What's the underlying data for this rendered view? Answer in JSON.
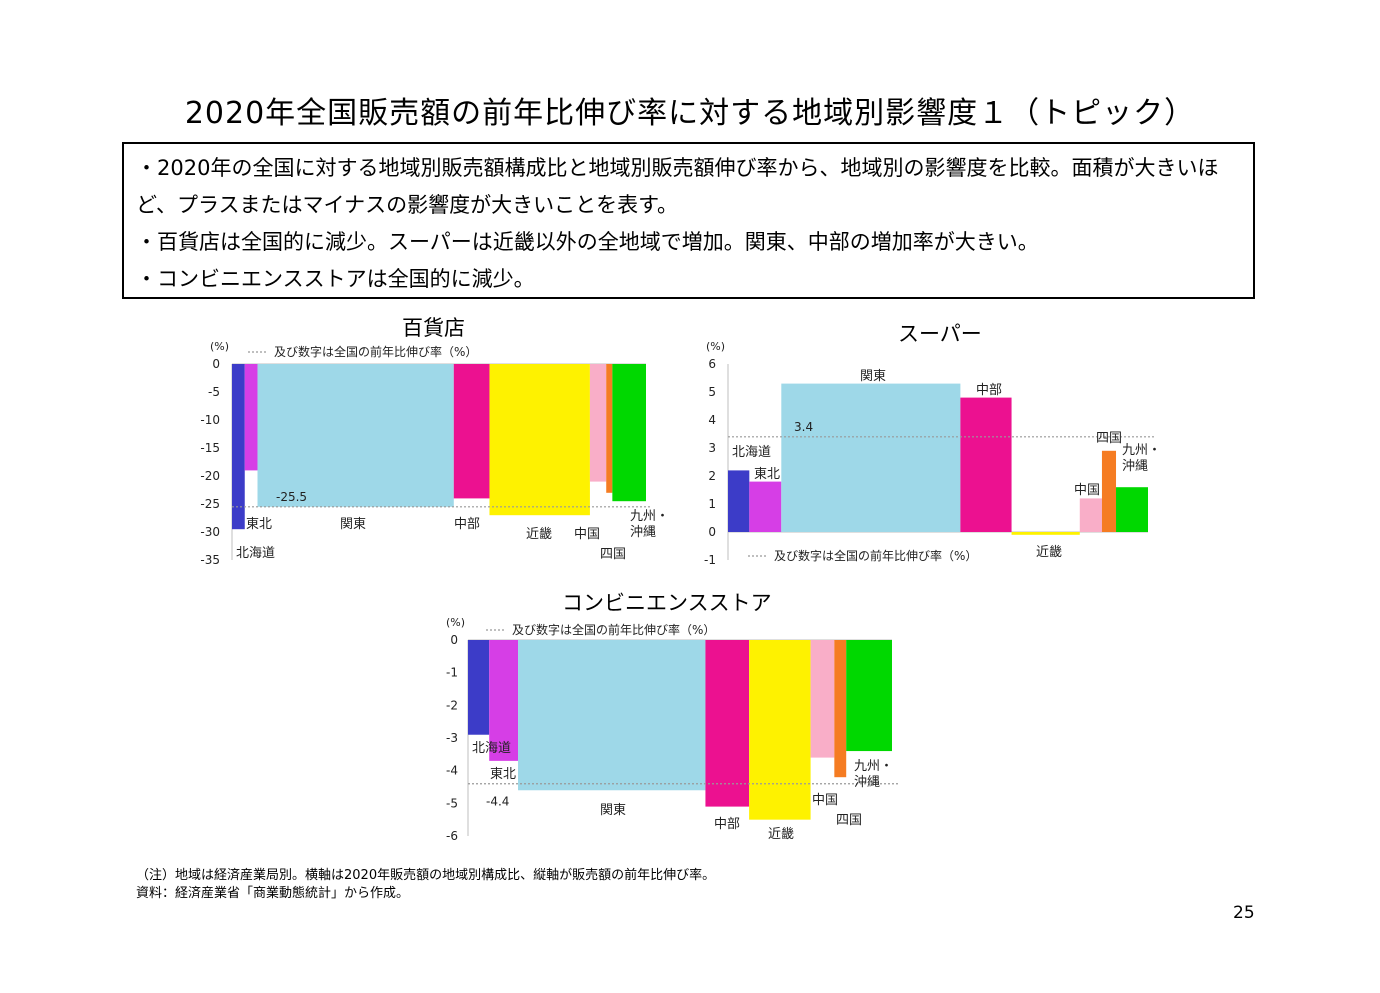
{
  "title": "2020年全国販売額の前年比伸び率に対する地域別影響度１（トピック）",
  "bullets": [
    "・2020年の全国に対する地域別販売額構成比と地域別販売額伸び率から、地域別の影響度を比較。面積が大きいほど、プラスまたはマイナスの影響度が大きいことを表す。",
    "・百貨店は全国的に減少。スーパーは近畿以外の全地域で増加。関東、中部の増加率が大きい。",
    "・コンビニエンスストアは全国的に減少。"
  ],
  "notes": [
    "（注）地域は経済産業局別。横軸は2020年販売額の地域別構成比、縦軸が販売額の前年比伸び率。",
    "資料：経済産業省「商業動態統計」から作成。"
  ],
  "page_number": "25",
  "region_colors": {
    "北海道": "#3c3cc8",
    "東北": "#d63ee6",
    "関東": "#9ed8e8",
    "中部": "#ec1190",
    "近畿": "#fef200",
    "中国": "#f9aec8",
    "四国": "#f57c22",
    "九州・沖縄": "#00d800"
  },
  "chart_data": [
    {
      "type": "bar",
      "title": "百貨店",
      "unit_label": "(%)",
      "reference_label": "及び数字は全国の前年比伸び率（%）",
      "reference_value": -25.5,
      "reference_text": "-25.5",
      "ylim": [
        -35,
        0
      ],
      "yticks": [
        "0",
        "-5",
        "-10",
        "-15",
        "-20",
        "-25",
        "-30",
        "-35"
      ],
      "grid": false,
      "categories": [
        "北海道",
        "東北",
        "関東",
        "中部",
        "近畿",
        "中国",
        "四国",
        "九州・沖縄"
      ],
      "shares": [
        2.5,
        2.5,
        38.5,
        7.0,
        19.7,
        3.2,
        1.2,
        6.6
      ],
      "values": [
        -29.5,
        -19.0,
        -25.5,
        -24.0,
        -27.0,
        -21.0,
        -23.0,
        -24.5
      ],
      "labels": [
        "北海道",
        "東北",
        "関東",
        "中部",
        "近畿",
        "中国",
        "四国",
        "九州・\n沖縄"
      ]
    },
    {
      "type": "bar",
      "title": "スーパー",
      "unit_label": "(%)",
      "reference_label": "及び数字は全国の前年比伸び率（%）",
      "reference_value": 3.4,
      "reference_text": "3.4",
      "ylim": [
        -1,
        6
      ],
      "yticks": [
        "6",
        "5",
        "4",
        "3",
        "2",
        "1",
        "0",
        "-1"
      ],
      "grid": false,
      "categories": [
        "北海道",
        "東北",
        "関東",
        "中部",
        "近畿",
        "中国",
        "四国",
        "九州・沖縄"
      ],
      "shares": [
        5.0,
        7.5,
        42.0,
        12.0,
        16.0,
        5.2,
        3.3,
        7.5
      ],
      "values": [
        2.2,
        1.8,
        5.3,
        4.8,
        -0.1,
        1.2,
        2.9,
        1.6
      ],
      "labels": [
        "北海道",
        "東北",
        "関東",
        "中部",
        "近畿",
        "中国",
        "四国",
        "九州・\n沖縄"
      ]
    },
    {
      "type": "bar",
      "title": "コンビニエンスストア",
      "unit_label": "(%)",
      "reference_label": "及び数字は全国の前年比伸び率（%）",
      "reference_value": -4.4,
      "reference_text": "-4.4",
      "ylim": [
        -6,
        0
      ],
      "yticks": [
        "0",
        "-1",
        "-2",
        "-3",
        "-4",
        "-5",
        "-6"
      ],
      "grid": false,
      "categories": [
        "北海道",
        "東北",
        "関東",
        "中部",
        "近畿",
        "中国",
        "四国",
        "九州・沖縄"
      ],
      "shares": [
        5.0,
        6.8,
        44.2,
        10.3,
        14.5,
        5.6,
        2.8,
        10.8
      ],
      "values": [
        -2.9,
        -3.7,
        -4.6,
        -5.1,
        -5.5,
        -3.6,
        -4.2,
        -3.4
      ],
      "labels": [
        "北海道",
        "東北",
        "関東",
        "中部",
        "近畿",
        "中国",
        "四国",
        "九州・\n沖縄"
      ]
    }
  ]
}
